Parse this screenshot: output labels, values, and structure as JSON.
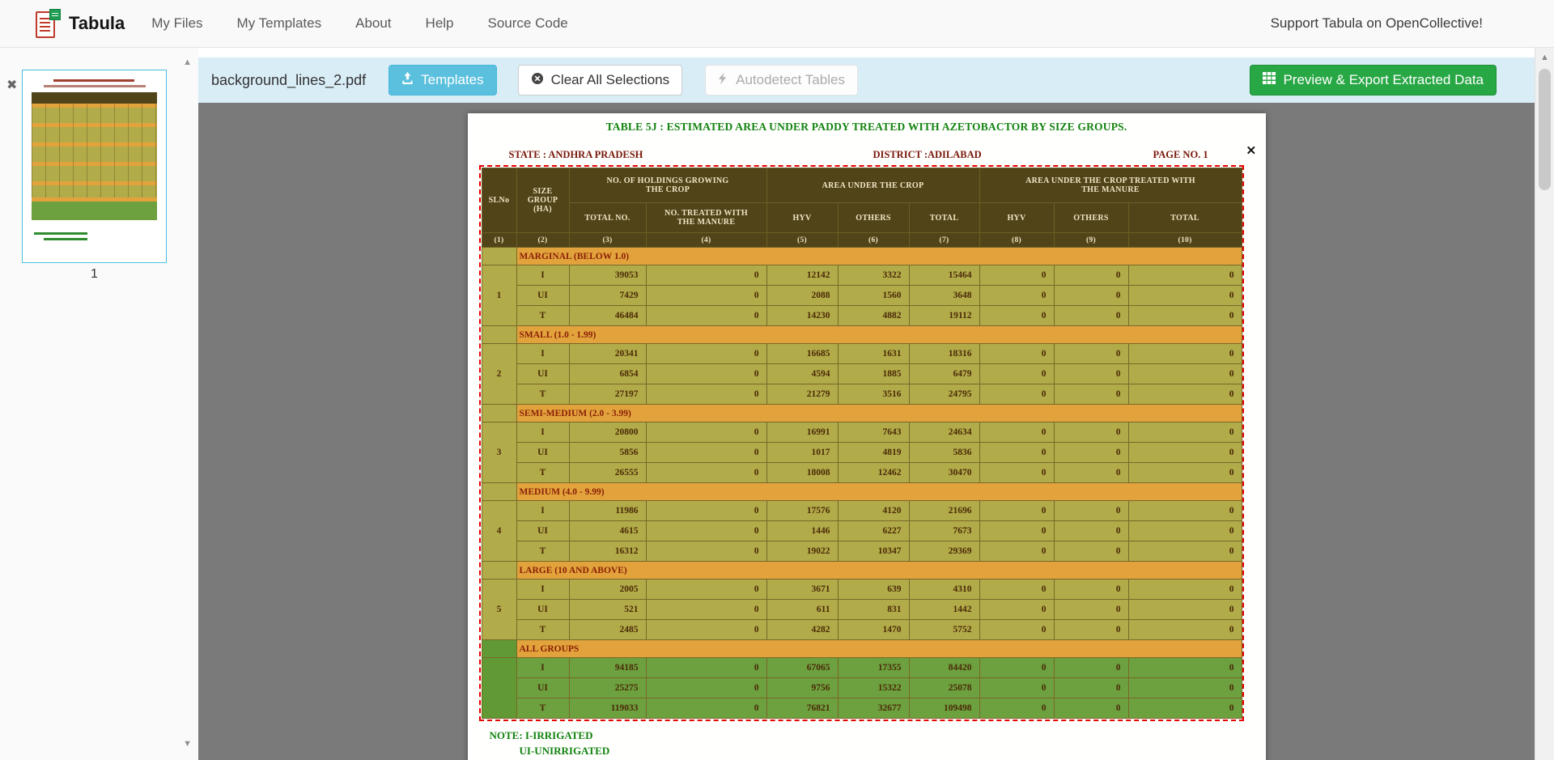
{
  "navbar": {
    "brand": "Tabula",
    "items": [
      {
        "label": "My Files"
      },
      {
        "label": "My Templates"
      },
      {
        "label": "About"
      },
      {
        "label": "Help"
      },
      {
        "label": "Source Code"
      }
    ],
    "support": "Support Tabula on OpenCollective!"
  },
  "toolbar": {
    "filename": "background_lines_2.pdf",
    "templates_label": "Templates",
    "clear_label": "Clear All Selections",
    "autodetect_label": "Autodetect Tables",
    "export_label": "Preview & Export Extracted Data"
  },
  "sidebar": {
    "page_label": "1",
    "close_glyph": "✖",
    "up_glyph": "▲",
    "down_glyph": "▼"
  },
  "scrollbar": {
    "up_glyph": "▲"
  },
  "selection": {
    "close_glyph": "✕"
  },
  "document": {
    "title": "TABLE 5J : ESTIMATED AREA UNDER PADDY  TREATED WITH AZETOBACTOR BY SIZE GROUPS.",
    "state": "STATE : ANDHRA PRADESH",
    "district": "DISTRICT :ADILABAD",
    "page_no": "PAGE NO. 1",
    "note1": "NOTE: I-IRRIGATED",
    "note2": "UI-UNIRRIGATED"
  },
  "table": {
    "headers": {
      "slno": "SLNo",
      "size_group": "SIZE\nGROUP\n(HA)",
      "holdings": "NO. OF HOLDINGS GROWING\nTHE CROP",
      "area": "AREA UNDER THE CROP",
      "area_treated": "AREA UNDER THE CROP TREATED WITH\nTHE  MANURE",
      "total_no": "TOTAL NO.",
      "no_treated": "NO. TREATED WITH\nTHE  MANURE",
      "hyv": "HYV",
      "others": "OTHERS",
      "total": "TOTAL"
    },
    "col_numbers": [
      "(1)",
      "(2)",
      "(3)",
      "(4)",
      "(5)",
      "(6)",
      "(7)",
      "(8)",
      "(9)",
      "(10)"
    ],
    "groups": [
      {
        "sl": "1",
        "label": "MARGINAL (BELOW 1.0)",
        "green": false,
        "rows": [
          [
            "I",
            "39053",
            "0",
            "12142",
            "3322",
            "15464",
            "0",
            "0",
            "0"
          ],
          [
            "UI",
            "7429",
            "0",
            "2088",
            "1560",
            "3648",
            "0",
            "0",
            "0"
          ],
          [
            "T",
            "46484",
            "0",
            "14230",
            "4882",
            "19112",
            "0",
            "0",
            "0"
          ]
        ]
      },
      {
        "sl": "2",
        "label": "SMALL (1.0 - 1.99)",
        "green": false,
        "rows": [
          [
            "I",
            "20341",
            "0",
            "16685",
            "1631",
            "18316",
            "0",
            "0",
            "0"
          ],
          [
            "UI",
            "6854",
            "0",
            "4594",
            "1885",
            "6479",
            "0",
            "0",
            "0"
          ],
          [
            "T",
            "27197",
            "0",
            "21279",
            "3516",
            "24795",
            "0",
            "0",
            "0"
          ]
        ]
      },
      {
        "sl": "3",
        "label": "SEMI-MEDIUM (2.0 - 3.99)",
        "green": false,
        "rows": [
          [
            "I",
            "20800",
            "0",
            "16991",
            "7643",
            "24634",
            "0",
            "0",
            "0"
          ],
          [
            "UI",
            "5856",
            "0",
            "1017",
            "4819",
            "5836",
            "0",
            "0",
            "0"
          ],
          [
            "T",
            "26555",
            "0",
            "18008",
            "12462",
            "30470",
            "0",
            "0",
            "0"
          ]
        ]
      },
      {
        "sl": "4",
        "label": "MEDIUM (4.0 - 9.99)",
        "green": false,
        "rows": [
          [
            "I",
            "11986",
            "0",
            "17576",
            "4120",
            "21696",
            "0",
            "0",
            "0"
          ],
          [
            "UI",
            "4615",
            "0",
            "1446",
            "6227",
            "7673",
            "0",
            "0",
            "0"
          ],
          [
            "T",
            "16312",
            "0",
            "19022",
            "10347",
            "29369",
            "0",
            "0",
            "0"
          ]
        ]
      },
      {
        "sl": "5",
        "label": "LARGE (10 AND ABOVE)",
        "green": false,
        "rows": [
          [
            "I",
            "2005",
            "0",
            "3671",
            "639",
            "4310",
            "0",
            "0",
            "0"
          ],
          [
            "UI",
            "521",
            "0",
            "611",
            "831",
            "1442",
            "0",
            "0",
            "0"
          ],
          [
            "T",
            "2485",
            "0",
            "4282",
            "1470",
            "5752",
            "0",
            "0",
            "0"
          ]
        ]
      },
      {
        "sl": "",
        "label": "ALL GROUPS",
        "green": true,
        "rows": [
          [
            "I",
            "94185",
            "0",
            "67065",
            "17355",
            "84420",
            "0",
            "0",
            "0"
          ],
          [
            "UI",
            "25275",
            "0",
            "9756",
            "15322",
            "25078",
            "0",
            "0",
            "0"
          ],
          [
            "T",
            "119033",
            "0",
            "76821",
            "32677",
            "109498",
            "0",
            "0",
            "0"
          ]
        ]
      }
    ]
  },
  "colors": {
    "toolbar_blue": "#d9edf7",
    "btn_info": "#5bc0de",
    "btn_success": "#28a745",
    "selection_red": "#e60000",
    "band_orange": "#e2a33c",
    "row_olive": "#b2ab49",
    "row_green": "#6da03e",
    "header_brown": "#514419"
  }
}
